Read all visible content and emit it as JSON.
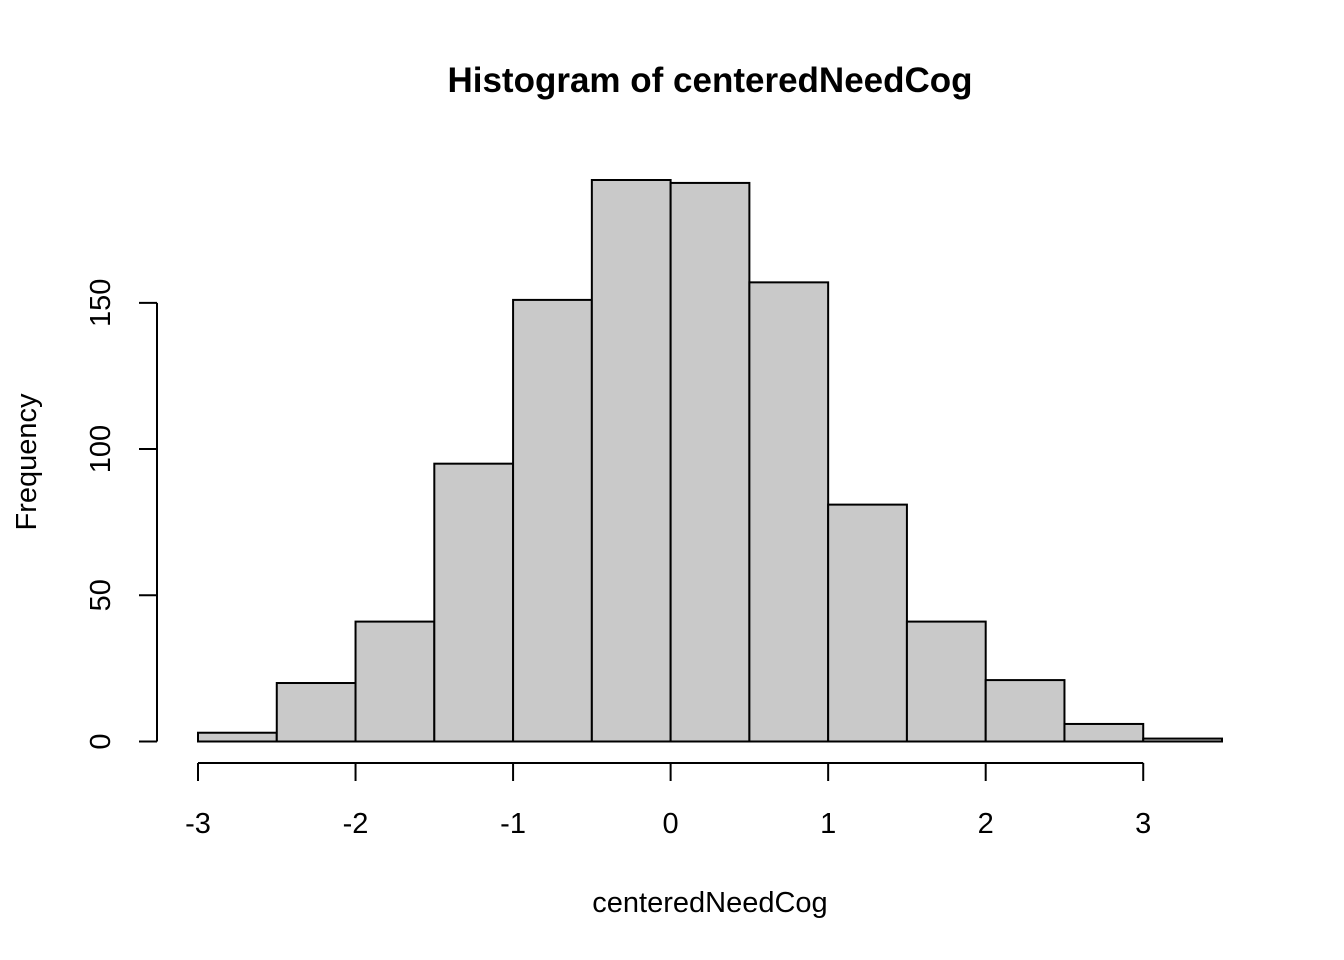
{
  "chart_data": {
    "type": "bar",
    "title": "Histogram of centeredNeedCog",
    "xlabel": "centeredNeedCog",
    "ylabel": "Frequency",
    "bins": [
      {
        "start": -3.0,
        "end": -2.5,
        "count": 3
      },
      {
        "start": -2.5,
        "end": -2.0,
        "count": 20
      },
      {
        "start": -2.0,
        "end": -1.5,
        "count": 41
      },
      {
        "start": -1.5,
        "end": -1.0,
        "count": 95
      },
      {
        "start": -1.0,
        "end": -0.5,
        "count": 151
      },
      {
        "start": -0.5,
        "end": 0.0,
        "count": 192
      },
      {
        "start": 0.0,
        "end": 0.5,
        "count": 191
      },
      {
        "start": 0.5,
        "end": 1.0,
        "count": 157
      },
      {
        "start": 1.0,
        "end": 1.5,
        "count": 81
      },
      {
        "start": 1.5,
        "end": 2.0,
        "count": 41
      },
      {
        "start": 2.0,
        "end": 2.5,
        "count": 21
      },
      {
        "start": 2.5,
        "end": 3.0,
        "count": 6
      },
      {
        "start": 3.0,
        "end": 3.5,
        "count": 1
      }
    ],
    "xlim": [
      -3,
      3.5
    ],
    "ylim": [
      0,
      192
    ],
    "x_ticks": [
      -3,
      -2,
      -1,
      0,
      1,
      2,
      3
    ],
    "x_tick_labels": [
      "-3",
      "-2",
      "-1",
      "0",
      "1",
      "2",
      "3"
    ],
    "y_ticks": [
      0,
      50,
      100,
      150
    ],
    "y_tick_labels": [
      "0",
      "50",
      "100",
      "150"
    ],
    "grid": false,
    "legend": "none",
    "bar_color": "#c9c9c9",
    "edge_color": "#000000"
  }
}
